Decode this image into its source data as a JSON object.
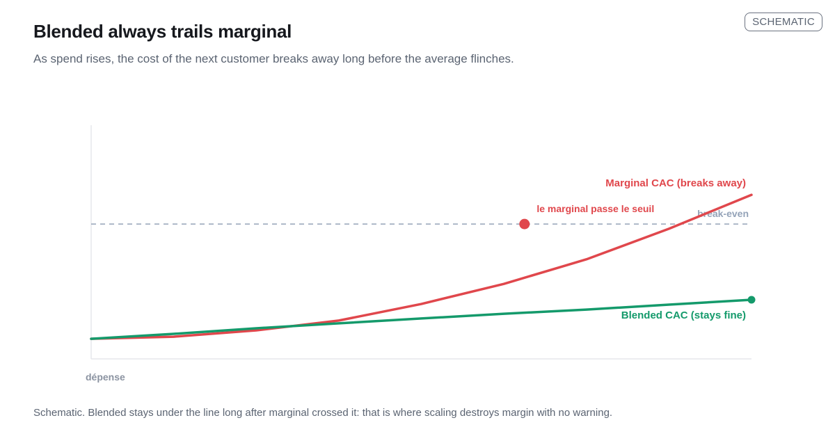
{
  "header": {
    "title": "Blended always trails marginal",
    "subtitle": "As spend rises, the cost of the next customer breaks away long before the average flinches.",
    "badge": "SCHEMATIC"
  },
  "footnote": "Schematic. Blended stays under the line long after marginal crossed it: that is where scaling destroys margin with no warning.",
  "chart_data": {
    "type": "line",
    "xlabel": "dépense",
    "ylabel": "",
    "x": [
      0,
      1,
      2,
      3,
      4,
      5,
      6,
      7,
      8
    ],
    "xlim": [
      0,
      8
    ],
    "ylim": [
      0,
      100
    ],
    "grid": false,
    "series": [
      {
        "name": "Marginal CAC (breaks away)",
        "color": "#e0474c",
        "values": [
          8.6,
          9.5,
          12.2,
          16.4,
          23.5,
          32.1,
          42.6,
          55.7,
          70.2
        ]
      },
      {
        "name": "Blended CAC (stays fine)",
        "color": "#149a6b",
        "values": [
          8.6,
          10.7,
          13.1,
          15.2,
          17.3,
          19.3,
          21.1,
          23.2,
          25.3
        ]
      }
    ],
    "reference_line": {
      "label": "break-even",
      "value": 57.7,
      "color": "#94a3b8"
    },
    "annotation": {
      "label": "le marginal passe le seuil",
      "x": 5.25,
      "y": 57.7,
      "color": "#e0474c"
    }
  }
}
